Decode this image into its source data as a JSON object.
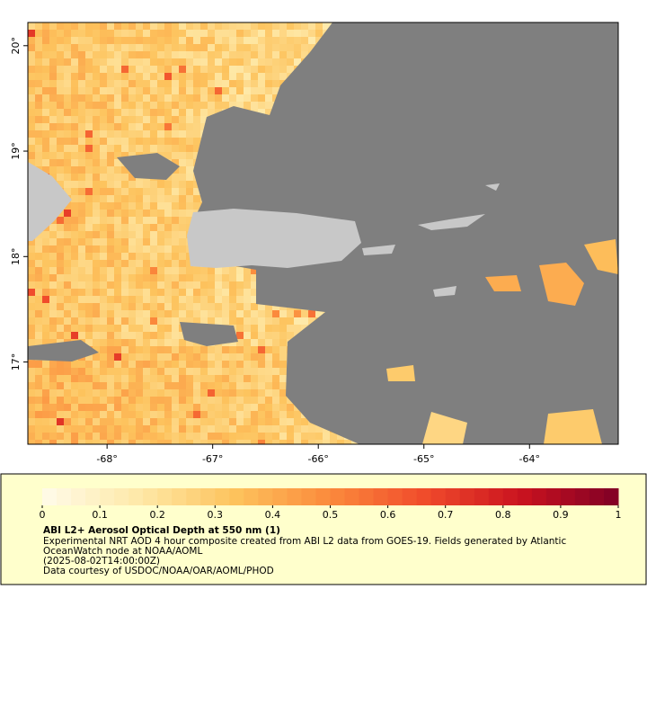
{
  "map": {
    "xlim": [
      -68.75,
      -63.16
    ],
    "ylim": [
      16.22,
      20.22
    ],
    "xticks": [
      {
        "value": -68,
        "label": "-68°"
      },
      {
        "value": -67,
        "label": "-67°"
      },
      {
        "value": -66,
        "label": "-66°"
      },
      {
        "value": -65,
        "label": "-65°"
      },
      {
        "value": -64,
        "label": "-64°"
      }
    ],
    "yticks": [
      {
        "value": 17,
        "label": "17°"
      },
      {
        "value": 18,
        "label": "18°"
      },
      {
        "value": 19,
        "label": "19°"
      },
      {
        "value": 20,
        "label": "20°"
      }
    ],
    "mask_color": "#7f7f7f",
    "land_color": "#c8c8c8"
  },
  "colorbar": {
    "range": [
      0,
      1
    ],
    "ticks": [
      0,
      0.1,
      0.2,
      0.3,
      0.4,
      0.5,
      0.6,
      0.7,
      0.8,
      0.9,
      1
    ],
    "colors": [
      "#fffbea",
      "#fee9a8",
      "#fdc35d",
      "#fb8a3c",
      "#f04a2b",
      "#c9121f",
      "#800026"
    ]
  },
  "caption": {
    "title": "ABI L2+ Aerosol Optical Depth at 550 nm (1)",
    "lines": [
      "Experimental NRT AOD 4 hour composite created from ABI L2 data from GOES-19. Fields generated by Atlantic",
      "OceanWatch node at NOAA/AOML",
      "(2025-08-02T14:00:00Z)",
      "Data courtesy of USDOC/NOAA/OAR/AOML/PHOD"
    ]
  }
}
